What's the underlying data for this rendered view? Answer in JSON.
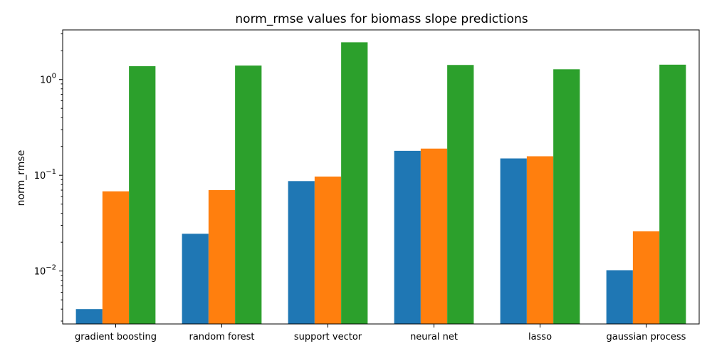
{
  "chart_data": {
    "type": "bar",
    "title": "norm_rmse values for biomass slope predictions",
    "xlabel": "",
    "ylabel": "norm_rmse",
    "yscale": "log",
    "ylim": [
      0.0028,
      3.3
    ],
    "yticks": [
      {
        "value": 0.01,
        "base": "10",
        "exp": "−2"
      },
      {
        "value": 0.1,
        "base": "10",
        "exp": "−1"
      },
      {
        "value": 1,
        "base": "10",
        "exp": "0"
      }
    ],
    "grid": false,
    "legend": "none",
    "categories": [
      "gradient boosting",
      "random forest",
      "support vector",
      "neural net",
      "lasso",
      "gaussian process"
    ],
    "series": [
      {
        "color": "#1f77b4",
        "values": [
          0.004,
          0.0245,
          0.087,
          0.18,
          0.15,
          0.0102
        ]
      },
      {
        "color": "#ff7f0e",
        "values": [
          0.068,
          0.07,
          0.097,
          0.19,
          0.158,
          0.026
        ]
      },
      {
        "color": "#2ca02c",
        "values": [
          1.38,
          1.4,
          2.45,
          1.42,
          1.28,
          1.43
        ]
      }
    ]
  }
}
